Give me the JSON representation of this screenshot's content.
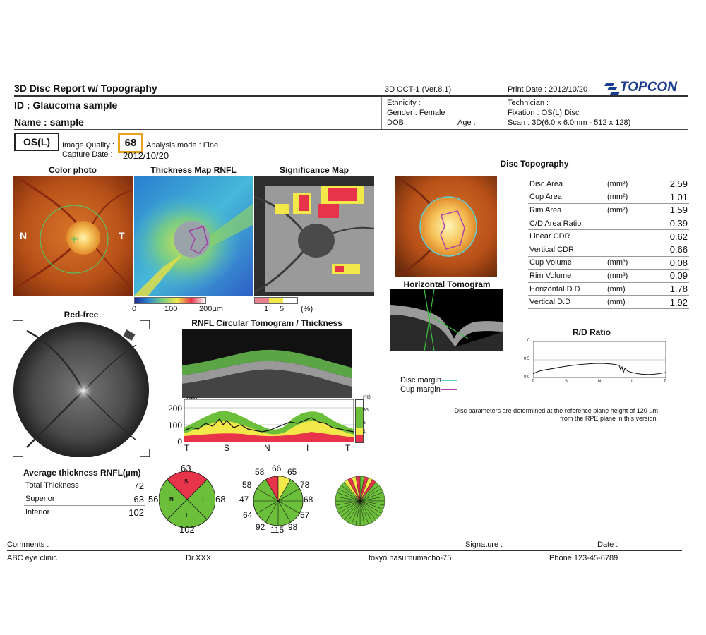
{
  "header": {
    "report_title": "3D Disc Report w/ Topography",
    "device": "3D OCT-1 (Ver.8.1)",
    "print_date": "Print Date : 2012/10/20",
    "brand": "TOPCON",
    "id": "ID : Glaucoma sample",
    "name": "Name : sample",
    "ethnicity": "Ethnicity :",
    "gender": "Gender : Female",
    "dob": "DOB :",
    "age": "Age :",
    "technician": "Technician :",
    "fixation": "Fixation : OS(L) Disc",
    "scan": "Scan : 3D(6.0 x 6.0mm - 512 x 128)"
  },
  "eye": "OS(L)",
  "quality": {
    "label": "Image Quality :",
    "value": "68",
    "analysis": "Analysis mode : Fine",
    "capture_label": "Capture Date :",
    "capture_date": "2012/10/20"
  },
  "panels": {
    "color_photo": "Color photo",
    "thickness_map": "Thickness Map RNFL",
    "significance_map": "Significance Map",
    "nasal": "N",
    "temporal": "T",
    "thickness_scale": [
      "0",
      "100",
      "200µm"
    ],
    "sig_scale": [
      "1",
      "5",
      "(%)"
    ],
    "red_free": "Red-free",
    "circ_tomogram": "RNFL Circular Tomogram / Thickness",
    "horizontal_tomogram": "Horizontal Tomogram",
    "disc_topography": "Disc Topography"
  },
  "disc_parameters": [
    {
      "name": "Disc Area",
      "unit": "(mm²)",
      "value": "2.59"
    },
    {
      "name": "Cup Area",
      "unit": "(mm²)",
      "value": "1.01"
    },
    {
      "name": "Rim Area",
      "unit": "(mm²)",
      "value": "1.59"
    },
    {
      "name": "C/D Area Ratio",
      "unit": "",
      "value": "0.39"
    },
    {
      "name": "Linear CDR",
      "unit": "",
      "value": "0.62"
    },
    {
      "name": "Vertical CDR",
      "unit": "",
      "value": "0.66"
    },
    {
      "name": "Cup Volume",
      "unit": "(mm³)",
      "value": "0.08"
    },
    {
      "name": "Rim Volume",
      "unit": "(mm³)",
      "value": "0.09"
    },
    {
      "name": "Horizontal D.D",
      "unit": "(mm)",
      "value": "1.78"
    },
    {
      "name": "Vertical D.D",
      "unit": "(mm)",
      "value": "1.92"
    }
  ],
  "rd_ratio": {
    "title": "R/D Ratio",
    "y_ticks": [
      "1.0",
      "0.5",
      "0.0"
    ],
    "x_ticks": [
      "T",
      "S",
      "N",
      "I",
      "T"
    ]
  },
  "legend": {
    "disc_margin": "Disc margin",
    "cup_margin": "Cup margin"
  },
  "note": {
    "line1": "Disc parameters are determined at the reference plane height of 120 µm",
    "line2": "from the RPE plane in this version."
  },
  "rnfl_graph": {
    "unit": "µm",
    "y_ticks": [
      "200",
      "100",
      "0"
    ],
    "x_ticks": [
      "T",
      "S",
      "N",
      "I",
      "T"
    ],
    "pct_label": "(%)",
    "pct_ticks": [
      "95",
      "5",
      "1"
    ]
  },
  "average_thickness": {
    "title": "Average thickness RNFL(µm)",
    "rows": [
      {
        "name": "Total Thickness",
        "value": "72"
      },
      {
        "name": "Superior",
        "value": "63"
      },
      {
        "name": "Inferior",
        "value": "102"
      }
    ]
  },
  "quadrant": {
    "top": "63",
    "left": "56",
    "right": "68",
    "bottom": "102",
    "S": "S",
    "N": "N",
    "T": "T",
    "I": "I"
  },
  "clock": {
    "h1": "58",
    "h2": "66",
    "h3": "65",
    "h4": "58",
    "h5": "78",
    "h6": "47",
    "h7": "68",
    "h8": "64",
    "h9": "57",
    "h10": "92",
    "h11": "115",
    "h12": "98"
  },
  "footer": {
    "comments": "Comments :",
    "signature": "Signature :",
    "date": "Date :",
    "clinic": "ABC eye clinic",
    "doctor": "Dr.XXX",
    "address": "tokyo hasumumacho-75",
    "phone": "Phone 123-45-6789"
  },
  "colors": {
    "normal": "#6cbf3a",
    "borderline": "#f2e84a",
    "abnormal": "#e8344a",
    "quality_box": "#e8a21c",
    "brand": "#1a3c8c"
  }
}
